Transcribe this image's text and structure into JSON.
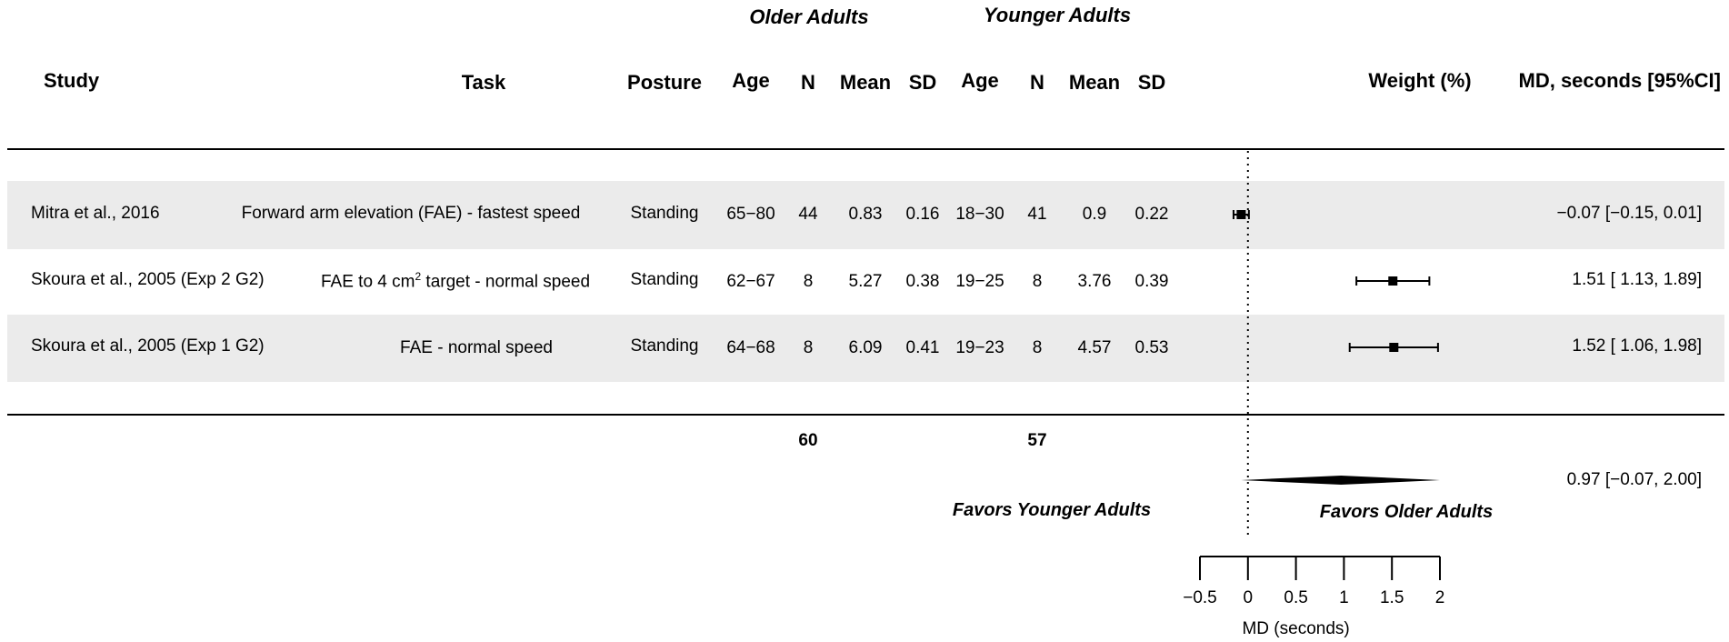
{
  "groups": {
    "older": "Older Adults",
    "younger": "Younger Adults"
  },
  "headers": {
    "study": "Study",
    "task": "Task",
    "posture": "Posture",
    "o_age": "Age",
    "o_n": "N",
    "o_mean": "Mean",
    "o_sd": "SD",
    "y_age": "Age",
    "y_n": "N",
    "y_mean": "Mean",
    "y_sd": "SD",
    "weight": "Weight (%)",
    "md": "MD, seconds [95%CI]"
  },
  "rows": [
    {
      "study": "Mitra et al., 2016",
      "task": "Forward arm elevation (FAE) - fastest speed",
      "posture": "Standing",
      "o_age": "65−80",
      "o_n": "44",
      "o_mean": "0.83",
      "o_sd": "0.16",
      "y_age": "18−30",
      "y_n": "41",
      "y_mean": "0.9",
      "y_sd": "0.22",
      "md": "−0.07 [−0.15, 0.01]"
    },
    {
      "study": "Skoura et al., 2005 (Exp 2 G2)",
      "task_pre": "FAE to 4 cm",
      "task_sup": "2",
      "task_post": " target - normal speed",
      "posture": "Standing",
      "o_age": "62−67",
      "o_n": "8",
      "o_mean": "5.27",
      "o_sd": "0.38",
      "y_age": "19−25",
      "y_n": "8",
      "y_mean": "3.76",
      "y_sd": "0.39",
      "md": "1.51 [ 1.13, 1.89]"
    },
    {
      "study": "Skoura et al., 2005 (Exp 1 G2)",
      "task": "FAE - normal speed",
      "posture": "Standing",
      "o_age": "64−68",
      "o_n": "8",
      "o_mean": "6.09",
      "o_sd": "0.41",
      "y_age": "19−23",
      "y_n": "8",
      "y_mean": "4.57",
      "y_sd": "0.53",
      "md": "1.52 [ 1.06, 1.98]"
    }
  ],
  "totals": {
    "older_n": "60",
    "younger_n": "57",
    "summary_md": "0.97 [−0.07, 2.00]"
  },
  "favors": {
    "left": "Favors Younger Adults",
    "right": "Favors Older Adults"
  },
  "chart_data": {
    "type": "forest",
    "xlabel": "MD (seconds)",
    "xticks": [
      "−0.5",
      "0",
      "0.5",
      "1",
      "1.5",
      "2"
    ],
    "xtick_values": [
      -0.5,
      0,
      0.5,
      1,
      1.5,
      2
    ],
    "reference_line": 0,
    "studies": [
      {
        "md": -0.07,
        "lo": -0.15,
        "hi": 0.01
      },
      {
        "md": 1.51,
        "lo": 1.13,
        "hi": 1.89
      },
      {
        "md": 1.52,
        "lo": 1.06,
        "hi": 1.98
      }
    ],
    "summary": {
      "md": 0.97,
      "lo": -0.07,
      "hi": 2.0
    }
  }
}
